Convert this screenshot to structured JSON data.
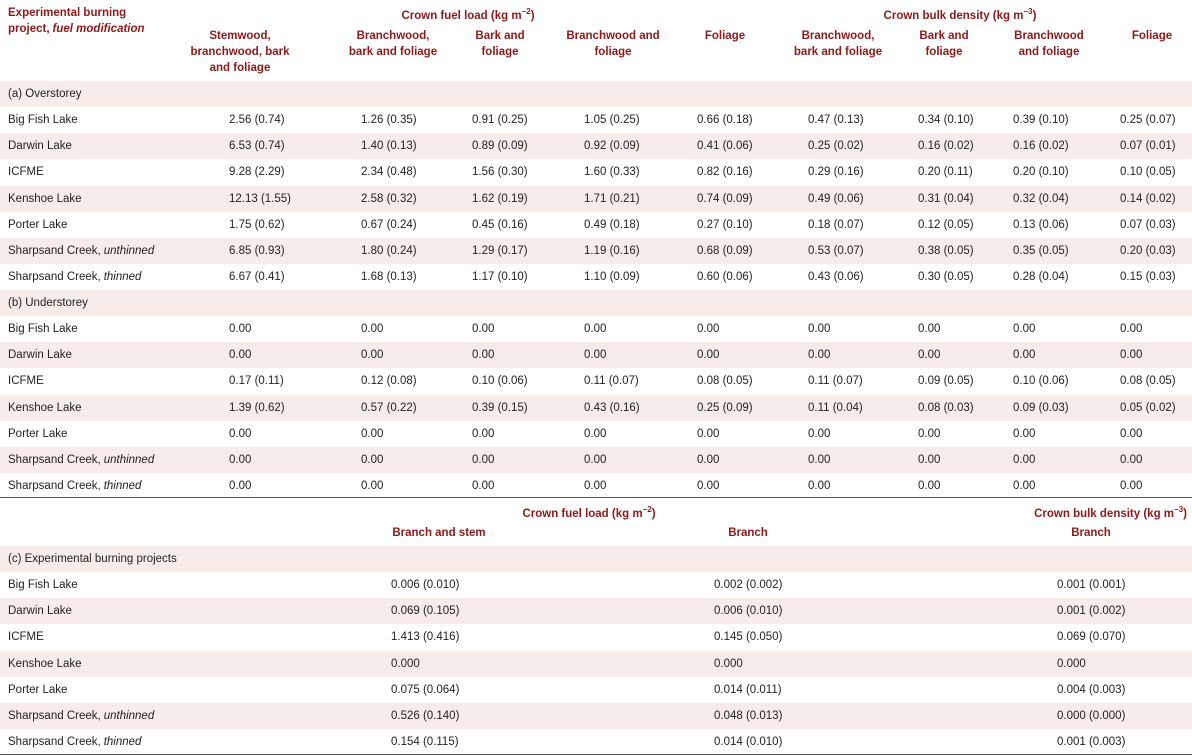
{
  "header": {
    "project_label": {
      "text": "Experimental burning project,",
      "italic": "fuel modification"
    },
    "groups": [
      {
        "text": "Crown fuel load (kg m",
        "sup": "−2",
        "close": ")"
      },
      {
        "text": "Crown bulk density (kg m",
        "sup": "−3",
        "close": ")"
      }
    ],
    "columns": [
      "Stemwood, branchwood, bark and foliage",
      "Branchwood, bark and foliage",
      "Bark and foliage",
      "Branchwood and foliage",
      "Foliage",
      "Branchwood, bark and foliage",
      "Bark and foliage",
      "Branchwood and foliage",
      "Foliage"
    ]
  },
  "sections": [
    {
      "title": "(a) Overstorey",
      "rows": [
        {
          "name": "Big Fish Lake",
          "values": [
            "2.56 (0.74)",
            "1.26 (0.35)",
            "0.91 (0.25)",
            "1.05 (0.25)",
            "0.66 (0.18)",
            "0.47 (0.13)",
            "0.34 (0.10)",
            "0.39 (0.10)",
            "0.25 (0.07)"
          ]
        },
        {
          "name": "Darwin Lake",
          "values": [
            "6.53 (0.74)",
            "1.40 (0.13)",
            "0.89 (0.09)",
            "0.92 (0.09)",
            "0.41 (0.06)",
            "0.25 (0.02)",
            "0.16 (0.02)",
            "0.16 (0.02)",
            "0.07 (0.01)"
          ]
        },
        {
          "name": "ICFME",
          "values": [
            "9.28 (2.29)",
            "2.34 (0.48)",
            "1.56 (0.30)",
            "1.60 (0.33)",
            "0.82 (0.16)",
            "0.29 (0.16)",
            "0.20 (0.11)",
            "0.20 (0.10)",
            "0.10 (0.05)"
          ]
        },
        {
          "name": "Kenshoe Lake",
          "values": [
            "12.13 (1.55)",
            "2.58 (0.32)",
            "1.62 (0.19)",
            "1.71 (0.21)",
            "0.74 (0.09)",
            "0.49 (0.06)",
            "0.31 (0.04)",
            "0.32 (0.04)",
            "0.14 (0.02)"
          ]
        },
        {
          "name": "Porter Lake",
          "values": [
            "1.75 (0.62)",
            "0.67 (0.24)",
            "0.45 (0.16)",
            "0.49 (0.18)",
            "0.27 (0.10)",
            "0.18 (0.07)",
            "0.12 (0.05)",
            "0.13 (0.06)",
            "0.07 (0.03)"
          ]
        },
        {
          "name": "Sharpsand Creek,",
          "modifier": "unthinned",
          "values": [
            "6.85 (0.93)",
            "1.80 (0.24)",
            "1.29 (0.17)",
            "1.19 (0.16)",
            "0.68 (0.09)",
            "0.53 (0.07)",
            "0.38 (0.05)",
            "0.35 (0.05)",
            "0.20 (0.03)"
          ]
        },
        {
          "name": "Sharpsand Creek,",
          "modifier": "thinned",
          "values": [
            "6.67 (0.41)",
            "1.68 (0.13)",
            "1.17 (0.10)",
            "1.10 (0.09)",
            "0.60 (0.06)",
            "0.43 (0.06)",
            "0.30 (0.05)",
            "0.28 (0.04)",
            "0.15 (0.03)"
          ]
        }
      ]
    },
    {
      "title": "(b) Understorey",
      "rows": [
        {
          "name": "Big Fish Lake",
          "values": [
            "0.00",
            "0.00",
            "0.00",
            "0.00",
            "0.00",
            "0.00",
            "0.00",
            "0.00",
            "0.00"
          ]
        },
        {
          "name": "Darwin Lake",
          "values": [
            "0.00",
            "0.00",
            "0.00",
            "0.00",
            "0.00",
            "0.00",
            "0.00",
            "0.00",
            "0.00"
          ]
        },
        {
          "name": "ICFME",
          "values": [
            "0.17 (0.11)",
            "0.12 (0.08)",
            "0.10 (0.06)",
            "0.11 (0.07)",
            "0.08 (0.05)",
            "0.11 (0.07)",
            "0.09 (0.05)",
            "0.10 (0.06)",
            "0.08 (0.05)"
          ]
        },
        {
          "name": "Kenshoe Lake",
          "values": [
            "1.39 (0.62)",
            "0.57 (0.22)",
            "0.39 (0.15)",
            "0.43 (0.16)",
            "0.25 (0.09)",
            "0.11 (0.04)",
            "0.08 (0.03)",
            "0.09 (0.03)",
            "0.05 (0.02)"
          ]
        },
        {
          "name": "Porter Lake",
          "values": [
            "0.00",
            "0.00",
            "0.00",
            "0.00",
            "0.00",
            "0.00",
            "0.00",
            "0.00",
            "0.00"
          ]
        },
        {
          "name": "Sharpsand Creek,",
          "modifier": "unthinned",
          "values": [
            "0.00",
            "0.00",
            "0.00",
            "0.00",
            "0.00",
            "0.00",
            "0.00",
            "0.00",
            "0.00"
          ]
        },
        {
          "name": "Sharpsand Creek,",
          "modifier": "thinned",
          "values": [
            "0.00",
            "0.00",
            "0.00",
            "0.00",
            "0.00",
            "0.00",
            "0.00",
            "0.00",
            "0.00"
          ]
        }
      ]
    }
  ],
  "part_c": {
    "groups": [
      {
        "text": "Crown fuel load (kg m",
        "sup": "−2",
        "close": ")"
      },
      {
        "text": "Crown bulk density (kg m",
        "sup": "−3",
        "close": ")"
      }
    ],
    "columns": [
      "Branch and stem",
      "Branch",
      "Branch"
    ],
    "title": "(c) Experimental burning projects",
    "rows": [
      {
        "name": "Big Fish Lake",
        "values": [
          "0.006 (0.010)",
          "0.002 (0.002)",
          "0.001 (0.001)"
        ]
      },
      {
        "name": "Darwin Lake",
        "values": [
          "0.069 (0.105)",
          "0.006 (0.010)",
          "0.001 (0.002)"
        ]
      },
      {
        "name": "ICFME",
        "values": [
          "1.413 (0.416)",
          "0.145 (0.050)",
          "0.069 (0.070)"
        ]
      },
      {
        "name": "Kenshoe Lake",
        "values": [
          "0.000",
          "0.000",
          "0.000"
        ]
      },
      {
        "name": "Porter Lake",
        "values": [
          "0.075 (0.064)",
          "0.014 (0.011)",
          "0.004 (0.003)"
        ]
      },
      {
        "name": "Sharpsand Creek,",
        "modifier": "unthinned",
        "values": [
          "0.526 (0.140)",
          "0.048 (0.013)",
          "0.000 (0.000)"
        ]
      },
      {
        "name": "Sharpsand Creek,",
        "modifier": "thinned",
        "values": [
          "0.154 (0.115)",
          "0.014 (0.010)",
          "0.001 (0.003)"
        ]
      }
    ]
  }
}
